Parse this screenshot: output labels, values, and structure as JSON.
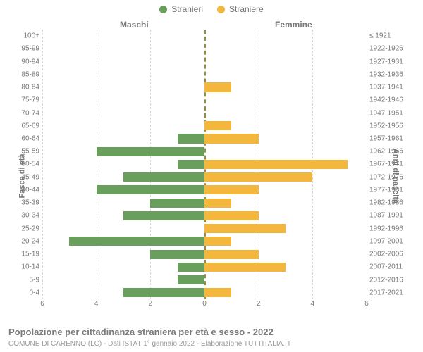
{
  "chart": {
    "type": "population-pyramid",
    "legend": {
      "male": {
        "label": "Stranieri",
        "color": "#6a9e5d"
      },
      "female": {
        "label": "Straniere",
        "color": "#f3b73e"
      }
    },
    "top_labels": {
      "male": "Maschi",
      "female": "Femmine"
    },
    "yaxis_left_title": "Fasce di età",
    "yaxis_right_title": "Anni di nascita",
    "x_max": 6,
    "x_ticks": [
      6,
      4,
      2,
      0,
      2,
      4,
      6
    ],
    "background_color": "#ffffff",
    "grid_color": "#d8d8d8",
    "center_line_color": "#8e8e4a",
    "label_fontsize": 10,
    "rows": [
      {
        "age": "100+",
        "years": "≤ 1921",
        "male": 0,
        "female": 0
      },
      {
        "age": "95-99",
        "years": "1922-1926",
        "male": 0,
        "female": 0
      },
      {
        "age": "90-94",
        "years": "1927-1931",
        "male": 0,
        "female": 0
      },
      {
        "age": "85-89",
        "years": "1932-1936",
        "male": 0,
        "female": 0
      },
      {
        "age": "80-84",
        "years": "1937-1941",
        "male": 0,
        "female": 1
      },
      {
        "age": "75-79",
        "years": "1942-1946",
        "male": 0,
        "female": 0
      },
      {
        "age": "70-74",
        "years": "1947-1951",
        "male": 0,
        "female": 0
      },
      {
        "age": "65-69",
        "years": "1952-1956",
        "male": 0,
        "female": 1
      },
      {
        "age": "60-64",
        "years": "1957-1961",
        "male": 1,
        "female": 2
      },
      {
        "age": "55-59",
        "years": "1962-1966",
        "male": 4,
        "female": 0
      },
      {
        "age": "50-54",
        "years": "1967-1971",
        "male": 1,
        "female": 5.3
      },
      {
        "age": "45-49",
        "years": "1972-1976",
        "male": 3,
        "female": 4
      },
      {
        "age": "40-44",
        "years": "1977-1981",
        "male": 4,
        "female": 2
      },
      {
        "age": "35-39",
        "years": "1982-1986",
        "male": 2,
        "female": 1
      },
      {
        "age": "30-34",
        "years": "1987-1991",
        "male": 3,
        "female": 2
      },
      {
        "age": "25-29",
        "years": "1992-1996",
        "male": 0,
        "female": 3
      },
      {
        "age": "20-24",
        "years": "1997-2001",
        "male": 5,
        "female": 1
      },
      {
        "age": "15-19",
        "years": "2002-2006",
        "male": 2,
        "female": 2
      },
      {
        "age": "10-14",
        "years": "2007-2011",
        "male": 1,
        "female": 3
      },
      {
        "age": "5-9",
        "years": "2012-2016",
        "male": 1,
        "female": 0
      },
      {
        "age": "0-4",
        "years": "2017-2021",
        "male": 3,
        "female": 1
      }
    ]
  },
  "footer": {
    "title": "Popolazione per cittadinanza straniera per età e sesso - 2022",
    "subtitle": "COMUNE DI CARENNO (LC) - Dati ISTAT 1° gennaio 2022 - Elaborazione TUTTITALIA.IT"
  }
}
